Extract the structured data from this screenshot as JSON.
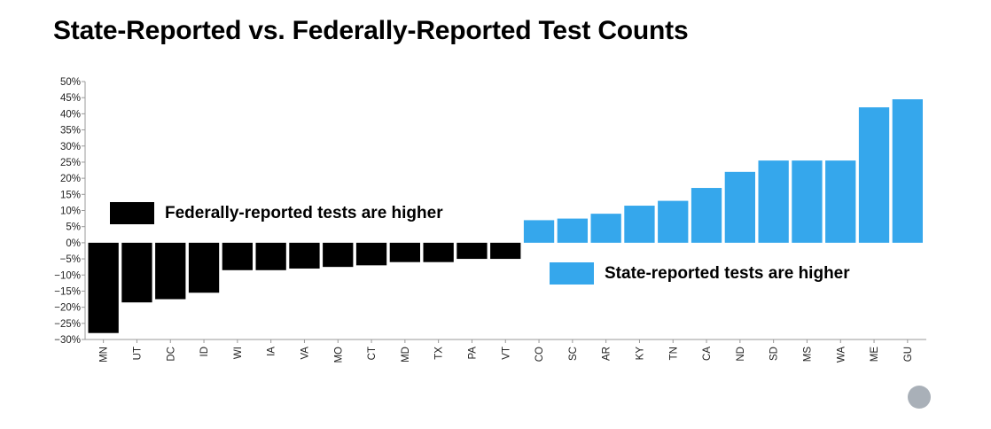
{
  "title": "State-Reported vs. Federally-Reported Test Counts",
  "legend": {
    "federal": "Federally-reported tests are higher",
    "state": "State-reported tests are higher"
  },
  "colors": {
    "federal": "#000000",
    "state": "#35a7ec",
    "logo": "#a9b0b8"
  },
  "logo": {
    "icon": "crescent-logo-icon"
  },
  "chart_data": {
    "type": "bar",
    "title": "State-Reported vs. Federally-Reported Test Counts",
    "xlabel": "",
    "ylabel": "",
    "ylim": [
      -30,
      50
    ],
    "yticks": [
      -30,
      -25,
      -20,
      -15,
      -10,
      -5,
      0,
      5,
      10,
      15,
      20,
      25,
      30,
      35,
      40,
      45,
      50
    ],
    "ytick_labels": [
      "−30%",
      "−25%",
      "−20%",
      "−15%",
      "−10%",
      "−5%",
      "0%",
      "5%",
      "10%",
      "15%",
      "20%",
      "25%",
      "30%",
      "35%",
      "40%",
      "45%",
      "50%"
    ],
    "grid": false,
    "legend_placement": "inside",
    "categories": [
      "MN",
      "UT",
      "DC",
      "ID",
      "WI",
      "IA",
      "VA",
      "MO",
      "CT",
      "MD",
      "TX",
      "PA",
      "VT",
      "CO",
      "SC",
      "AR",
      "KY",
      "TN",
      "CA",
      "ND",
      "SD",
      "MS",
      "WA",
      "ME",
      "GU"
    ],
    "series": [
      {
        "values": [
          -28,
          -18.5,
          -17.5,
          -15.5,
          -8.5,
          -8.5,
          -8,
          -7.5,
          -7,
          -6,
          -6,
          -5,
          -5,
          7,
          7.5,
          9,
          11.5,
          13,
          17,
          22,
          25.5,
          25.5,
          25.5,
          42,
          44.5
        ]
      }
    ]
  }
}
